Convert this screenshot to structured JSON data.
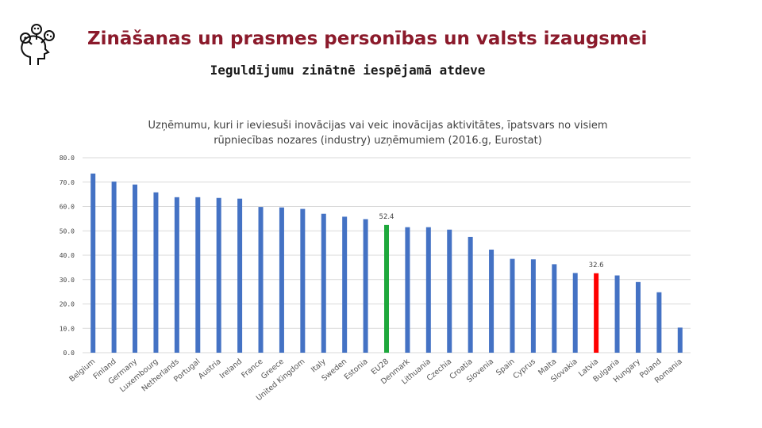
{
  "header": {
    "title": "Zināšanas un prasmes personības un valsts izaugsmei",
    "subtitle": "Ieguldījumu zinātnē iespējamā atdeve",
    "logo_icon": "head-ideas-icon"
  },
  "colors": {
    "title": "#8b1a2b",
    "bar_default": "#4472c4",
    "bar_eu": "#1ea83c",
    "bar_latvia": "#ff0000"
  },
  "chart_data": {
    "type": "bar",
    "title_line1": "Uzņēmumu, kuri ir ieviesuši inovācijas vai veic inovācijas aktivitātes, īpatsvars no visiem",
    "title_line2": "rūpniecības nozares (industry) uzņēmumiem (2016.g, Eurostat)",
    "ylim": [
      0,
      80
    ],
    "yticks": [
      "0.0",
      "10.0",
      "20.0",
      "30.0",
      "40.0",
      "50.0",
      "60.0",
      "70.0",
      "80.0"
    ],
    "grid": true,
    "categories": [
      "Belgium",
      "Finland",
      "Germany",
      "Luxembourg",
      "Netherlands",
      "Portugal",
      "Austria",
      "Ireland",
      "France",
      "Greece",
      "United Kingdom",
      "Italy",
      "Sweden",
      "Estonia",
      "EU28",
      "Denmark",
      "Lithuania",
      "Czechia",
      "Croatia",
      "Slovenia",
      "Spain",
      "Cyprus",
      "Malta",
      "Slovakia",
      "Latvia",
      "Bulgaria",
      "Hungary",
      "Poland",
      "Romania"
    ],
    "values": [
      73.5,
      70.2,
      69.0,
      65.8,
      63.8,
      63.8,
      63.5,
      63.2,
      59.8,
      59.6,
      59.0,
      57.0,
      55.8,
      54.8,
      52.4,
      51.5,
      51.5,
      50.5,
      47.5,
      42.3,
      38.5,
      38.3,
      36.3,
      32.7,
      32.6,
      31.7,
      29.0,
      24.8,
      10.3
    ],
    "highlights": {
      "EU28": "eu",
      "Latvia": "latvia"
    },
    "data_labels": [
      {
        "category": "EU28",
        "text": "52.4"
      },
      {
        "category": "Latvia",
        "text": "32.6"
      }
    ]
  }
}
